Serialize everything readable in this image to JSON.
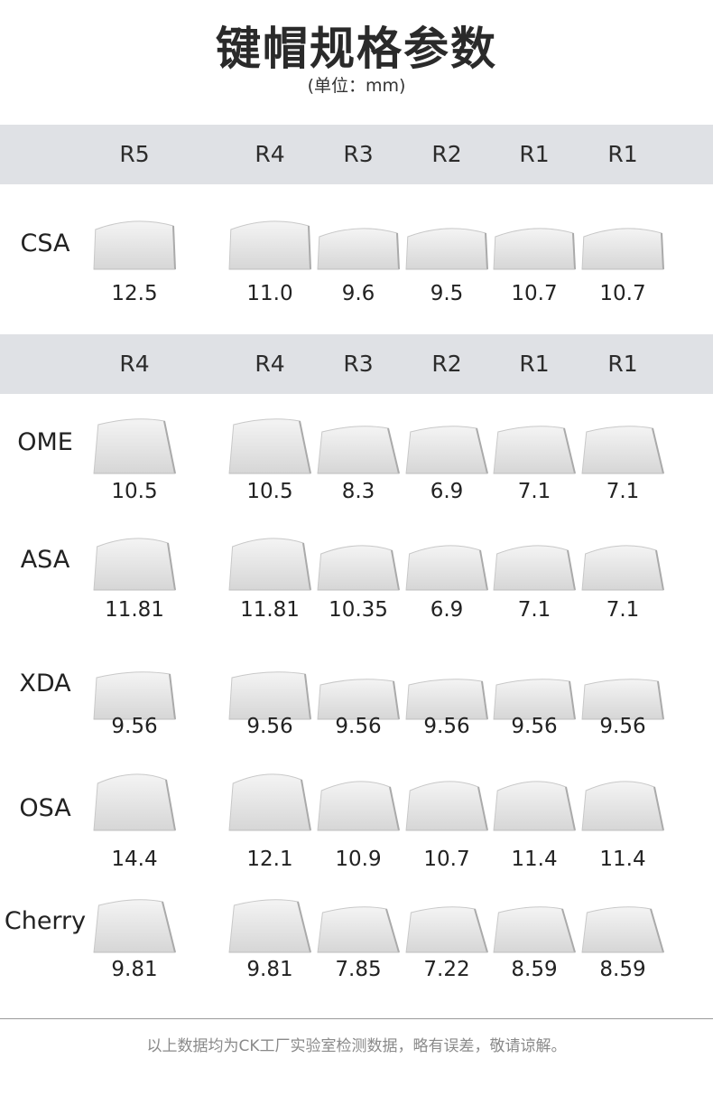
{
  "title": "键帽规格参数",
  "unit": "(单位：mm)",
  "headers": [
    [
      "R5",
      "R4",
      "R3",
      "R2",
      "R1",
      "R1"
    ],
    [
      "R4",
      "R4",
      "R3",
      "R2",
      "R1",
      "R1"
    ]
  ],
  "profiles": [
    {
      "name": "CSA",
      "values": [
        "12.5",
        "11.0",
        "9.6",
        "9.5",
        "10.7",
        "10.7"
      ]
    },
    {
      "name": "OME",
      "values": [
        "10.5",
        "10.5",
        "8.3",
        "6.9",
        "7.1",
        "7.1"
      ]
    },
    {
      "name": "ASA",
      "values": [
        "11.81",
        "11.81",
        "10.35",
        "6.9",
        "7.1",
        "7.1"
      ]
    },
    {
      "name": "XDA",
      "values": [
        "9.56",
        "9.56",
        "9.56",
        "9.56",
        "9.56",
        "9.56"
      ]
    },
    {
      "name": "OSA",
      "values": [
        "14.4",
        "12.1",
        "10.9",
        "10.7",
        "11.4",
        "11.4"
      ]
    },
    {
      "name": "Cherry",
      "values": [
        "9.81",
        "9.81",
        "7.85",
        "7.22",
        "8.59",
        "8.59"
      ]
    }
  ],
  "footer_note": "以上数据均为CK工厂实验室检测数据，略有误差，敬请谅解。"
}
